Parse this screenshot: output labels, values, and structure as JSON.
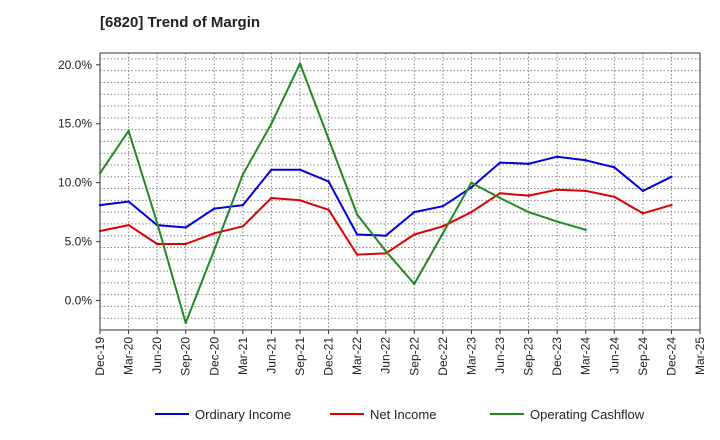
{
  "chart_data": {
    "type": "line",
    "title": "[6820]  Trend of Margin",
    "xlabel": "",
    "ylabel": "",
    "categories": [
      "Dec-19",
      "Mar-20",
      "Jun-20",
      "Sep-20",
      "Dec-20",
      "Mar-21",
      "Jun-21",
      "Sep-21",
      "Dec-21",
      "Mar-22",
      "Jun-22",
      "Sep-22",
      "Dec-22",
      "Mar-23",
      "Jun-23",
      "Sep-23",
      "Dec-23",
      "Mar-24",
      "Jun-24",
      "Sep-24",
      "Dec-24",
      "Mar-25"
    ],
    "y_ticks": [
      "20.0%",
      "15.0%",
      "10.0%",
      "5.0%",
      "0.0%"
    ],
    "y_tick_values": [
      20,
      15,
      10,
      5,
      0
    ],
    "ylim": [
      -2.5,
      21
    ],
    "grid": true,
    "legend_position": "bottom",
    "series": [
      {
        "name": "Ordinary Income",
        "color": "#0000dd",
        "values": [
          8.1,
          8.4,
          6.4,
          6.2,
          7.8,
          8.1,
          11.1,
          11.1,
          10.1,
          5.6,
          5.5,
          7.5,
          8.0,
          9.6,
          11.7,
          11.6,
          12.2,
          11.9,
          11.3,
          9.3,
          10.5,
          null
        ]
      },
      {
        "name": "Net Income",
        "color": "#dd0000",
        "values": [
          5.9,
          6.4,
          4.8,
          4.8,
          5.7,
          6.3,
          8.7,
          8.5,
          7.7,
          3.9,
          4.0,
          5.6,
          6.3,
          7.5,
          9.1,
          8.9,
          9.4,
          9.3,
          8.8,
          7.4,
          8.1,
          null
        ]
      },
      {
        "name": "Operating Cashflow",
        "color": "#228822",
        "values": [
          10.8,
          14.4,
          6.6,
          -1.9,
          4.3,
          10.7,
          15.0,
          20.1,
          13.7,
          7.3,
          4.2,
          1.4,
          5.7,
          10.0,
          8.7,
          7.5,
          6.7,
          6.0,
          null,
          null,
          null,
          null
        ]
      }
    ]
  }
}
